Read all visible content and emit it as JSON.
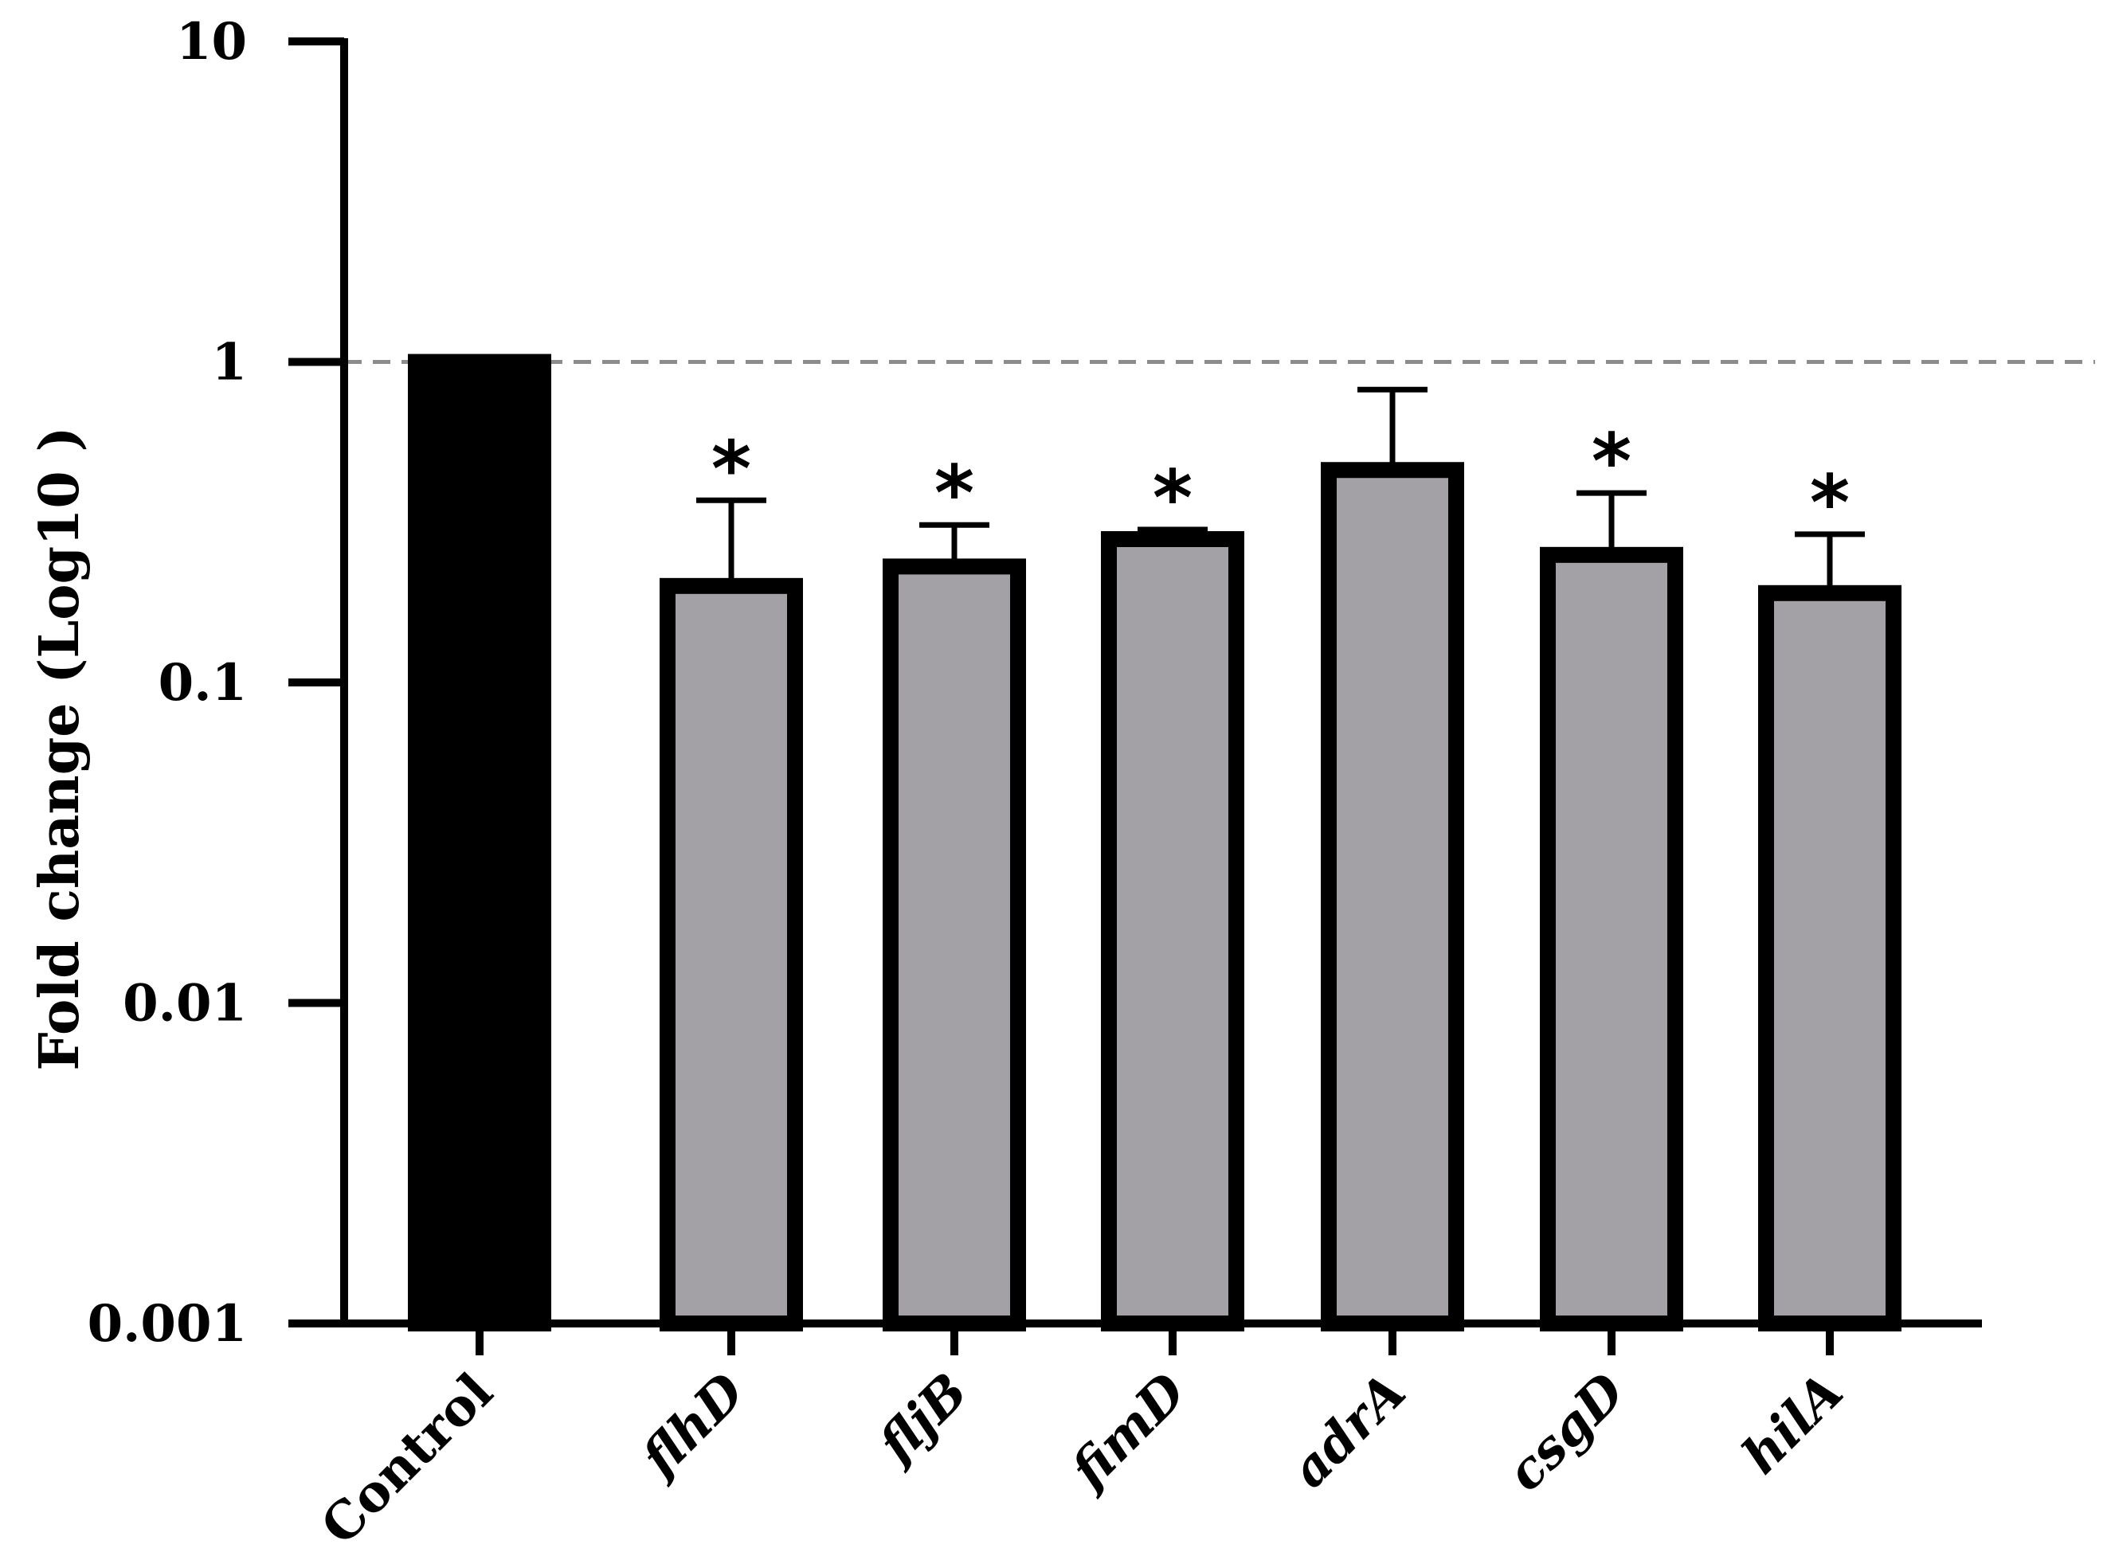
{
  "chart_data": {
    "type": "bar",
    "title": "",
    "xlabel": "",
    "ylabel": "Fold change (Log10 )",
    "yscale": "log",
    "ylim": [
      0.001,
      10
    ],
    "yticks": [
      "0.001",
      "0.01",
      "0.1",
      "1",
      "10"
    ],
    "reference_line": {
      "y": 1,
      "style": "dashed",
      "color": "#8c8c8c"
    },
    "categories": [
      "Control",
      "flhD",
      "fljB",
      "fimD",
      "adrA",
      "csgD",
      "hilA"
    ],
    "italic_categories": [
      false,
      true,
      true,
      true,
      true,
      true,
      true
    ],
    "values": [
      1.0,
      0.2,
      0.23,
      0.28,
      0.46,
      0.25,
      0.19
    ],
    "error_upper": [
      1.0,
      0.37,
      0.31,
      0.3,
      0.82,
      0.39,
      0.29
    ],
    "significance": [
      "",
      "*",
      "*",
      "*",
      "",
      "*",
      "*"
    ],
    "colors": {
      "control_fill": "#000000",
      "treatment_fill": "#a3a1a6",
      "bar_edge": "#000000",
      "axis": "#000000"
    },
    "grid": false,
    "legend": "none"
  }
}
